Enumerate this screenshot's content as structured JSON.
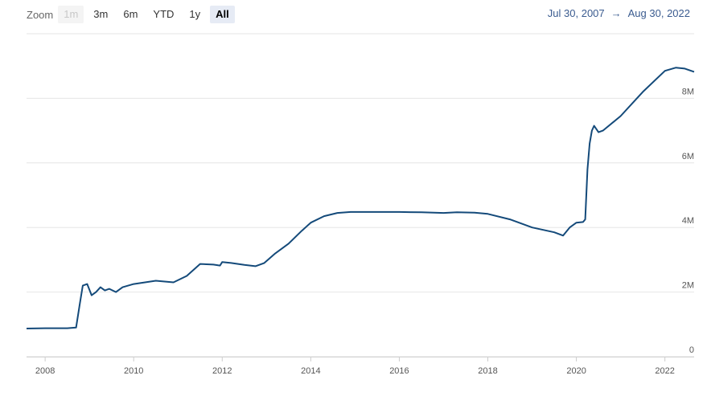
{
  "toolbar": {
    "zoom_label": "Zoom",
    "buttons": [
      {
        "label": "1m",
        "state": "disabled"
      },
      {
        "label": "3m",
        "state": "normal"
      },
      {
        "label": "6m",
        "state": "normal"
      },
      {
        "label": "YTD",
        "state": "normal"
      },
      {
        "label": "1y",
        "state": "normal"
      },
      {
        "label": "All",
        "state": "selected"
      }
    ]
  },
  "range": {
    "from": "Jul 30, 2007",
    "arrow": "→",
    "to": "Aug 30, 2022"
  },
  "colors": {
    "line": "#144a7a",
    "grid": "#e6e6e6",
    "range_text": "#3a5b8f"
  },
  "chart_data": {
    "type": "line",
    "title": "",
    "xlabel": "",
    "ylabel": "",
    "xlim": [
      2007.58,
      2022.66
    ],
    "ylim": [
      0,
      10
    ],
    "y_unit": "M",
    "x_ticks": [
      "2008",
      "2010",
      "2012",
      "2014",
      "2016",
      "2018",
      "2020",
      "2022"
    ],
    "y_ticks": [
      "0",
      "2M",
      "4M",
      "6M",
      "8M"
    ],
    "grid": true,
    "legend": "none",
    "series": [
      {
        "x": [
          2007.58,
          2008.0,
          2008.5,
          2008.7,
          2008.78,
          2008.85,
          2008.95,
          2009.05,
          2009.15,
          2009.25,
          2009.35,
          2009.45,
          2009.6,
          2009.75,
          2010.0,
          2010.5,
          2010.9,
          2011.2,
          2011.5,
          2011.8,
          2011.95,
          2012.0,
          2012.2,
          2012.5,
          2012.75,
          2012.95,
          2013.2,
          2013.5,
          2013.8,
          2014.0,
          2014.3,
          2014.6,
          2014.9,
          2015.0,
          2015.5,
          2016.0,
          2016.5,
          2017.0,
          2017.3,
          2017.7,
          2018.0,
          2018.5,
          2019.0,
          2019.5,
          2019.7,
          2019.85,
          2020.0,
          2020.15,
          2020.2,
          2020.25,
          2020.3,
          2020.35,
          2020.4,
          2020.5,
          2020.6,
          2021.0,
          2021.5,
          2022.0,
          2022.25,
          2022.45,
          2022.66
        ],
        "y": [
          0.87,
          0.88,
          0.88,
          0.9,
          1.6,
          2.2,
          2.25,
          1.9,
          2.0,
          2.15,
          2.05,
          2.1,
          2.0,
          2.15,
          2.25,
          2.35,
          2.3,
          2.5,
          2.87,
          2.85,
          2.82,
          2.93,
          2.9,
          2.84,
          2.8,
          2.9,
          3.2,
          3.5,
          3.9,
          4.15,
          4.35,
          4.45,
          4.48,
          4.48,
          4.48,
          4.48,
          4.47,
          4.45,
          4.47,
          4.46,
          4.42,
          4.25,
          4.0,
          3.85,
          3.75,
          4.0,
          4.15,
          4.17,
          4.25,
          5.8,
          6.6,
          7.0,
          7.15,
          6.95,
          7.0,
          7.45,
          8.2,
          8.85,
          8.95,
          8.92,
          8.82
        ]
      }
    ]
  }
}
